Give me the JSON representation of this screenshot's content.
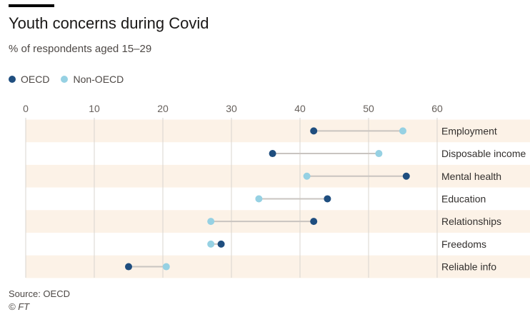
{
  "header": {
    "title": "Youth concerns during Covid",
    "subtitle": "% of respondents aged 15–29"
  },
  "colors": {
    "oecd": "#1f4e7f",
    "non_oecd": "#96d1e3",
    "band": "#fcf2e7",
    "connector": "#c9c4c0",
    "grid": "#d9d4cf",
    "axis_text": "#66605c"
  },
  "footer": {
    "source": "Source: OECD",
    "credit": "© FT"
  },
  "chart_data": {
    "type": "dumbbell",
    "title": "Youth concerns during Covid",
    "subtitle": "% of respondents aged 15–29",
    "xlim": [
      0,
      60
    ],
    "x_ticks": [
      0,
      10,
      20,
      30,
      40,
      50,
      60
    ],
    "grid": true,
    "legend_position": "top-left",
    "categories": [
      "Employment",
      "Disposable income",
      "Mental health",
      "Education",
      "Relationships",
      "Freedoms",
      "Reliable info"
    ],
    "series": [
      {
        "name": "OECD",
        "values": [
          42,
          36,
          55.5,
          44,
          42,
          28.5,
          15
        ]
      },
      {
        "name": "Non-OECD",
        "values": [
          55,
          51.5,
          41,
          34,
          27,
          27,
          20.5
        ]
      }
    ]
  }
}
